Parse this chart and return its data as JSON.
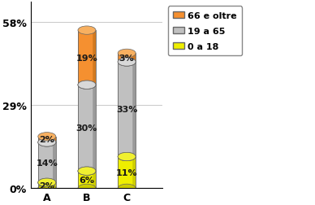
{
  "categories": [
    "A",
    "B",
    "C"
  ],
  "segments": {
    "0 a 18": [
      2,
      6,
      11
    ],
    "19 a 65": [
      14,
      30,
      33
    ],
    "66 e oltre": [
      2,
      19,
      3
    ]
  },
  "colors": {
    "0 a 18": "#eeee00",
    "19 a 65": "#c0c0c0",
    "66 e oltre": "#f59030"
  },
  "side_colors": {
    "0 a 18": "#cccc00",
    "19 a 65": "#999999",
    "66 e oltre": "#d07820"
  },
  "top_colors": {
    "0 a 18": "#f0f030",
    "19 a 65": "#d8d8d8",
    "66 e oltre": "#f8b060"
  },
  "edge_color": "#666666",
  "yticks": [
    0,
    29,
    58
  ],
  "ylabels": [
    "0%",
    "29%",
    "58%"
  ],
  "ylim_max": 65,
  "background_color": "#ffffff",
  "grid_color": "#cccccc",
  "label_fontsize": 9,
  "tick_fontsize": 9,
  "legend_fontsize": 8,
  "bar_label_fontsize": 8,
  "x_positions": [
    0.45,
    1.3,
    2.15
  ],
  "bar_width": 0.38,
  "ellipse_height_ratio": 0.045,
  "xlim": [
    0.1,
    2.9
  ]
}
